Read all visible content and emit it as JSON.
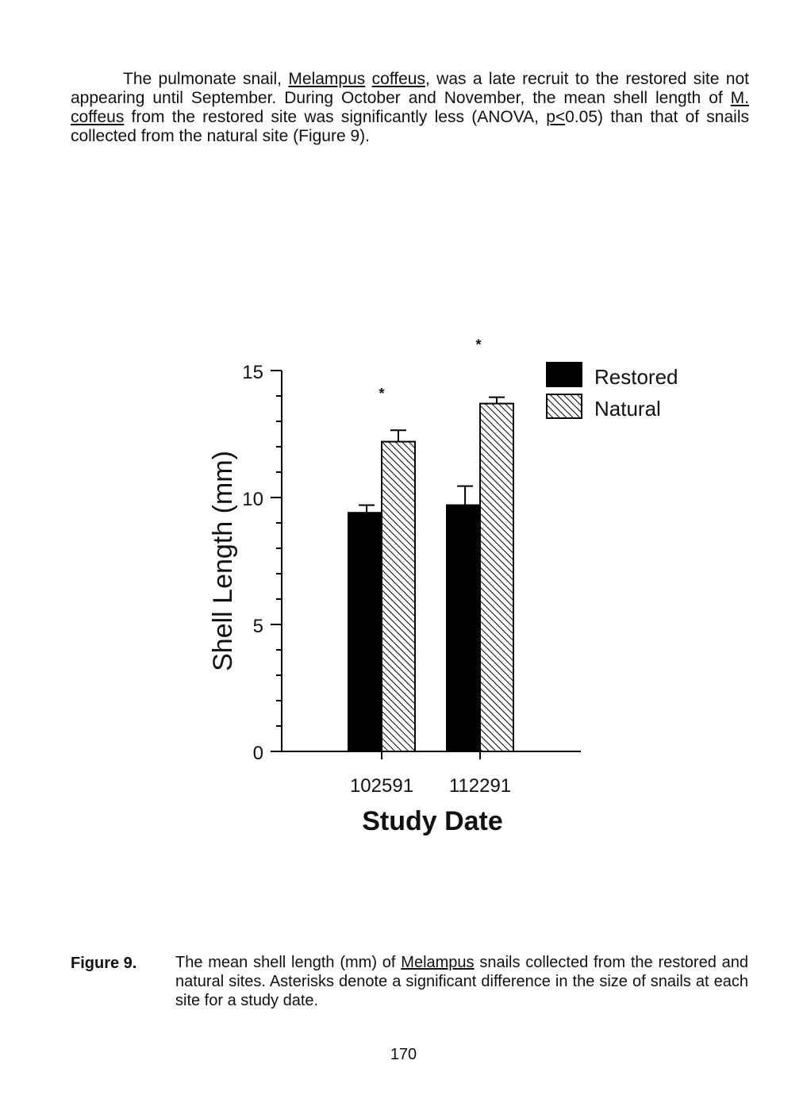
{
  "paragraph": {
    "s1": "The pulmonate snail, ",
    "genus": "Melampus",
    "s2": " ",
    "species": "coffeus",
    "s3": ", was a late recruit to the restored site not appearing until September.  During October and November, the mean shell length of ",
    "abbrev": "M.",
    "s4": " ",
    "species2": "coffeus",
    "s5": " from the restored site was significantly less (ANOVA, ",
    "p": "p<",
    "s6": "0.05) than that of snails collected from the natural site (Figure 9)."
  },
  "chart_data": {
    "type": "bar",
    "categories": [
      "102591",
      "112291"
    ],
    "series": [
      {
        "name": "Restored",
        "values": [
          9.4,
          9.7
        ],
        "errors": [
          0.3,
          0.75
        ],
        "color": "#000000",
        "fill": "solid"
      },
      {
        "name": "Natural",
        "values": [
          12.2,
          13.7
        ],
        "errors": [
          0.45,
          0.25
        ],
        "color": "#000000",
        "fill": "hatched"
      }
    ],
    "significance": [
      "*",
      "*"
    ],
    "xlabel": "Study Date",
    "ylabel": "Shell Length (mm)",
    "ylim": [
      0,
      15
    ],
    "yticks": [
      "0",
      "5",
      "10",
      "15"
    ],
    "legend_position": "top-right",
    "grid": false
  },
  "caption": {
    "label": "Figure 9.",
    "t1": "The mean shell length (mm) of ",
    "genus": "Melampus",
    "t2": " snails collected from the restored and natural sites.  Asterisks denote a significant difference in the size of snails at each site for a study date."
  },
  "page_number": "170"
}
